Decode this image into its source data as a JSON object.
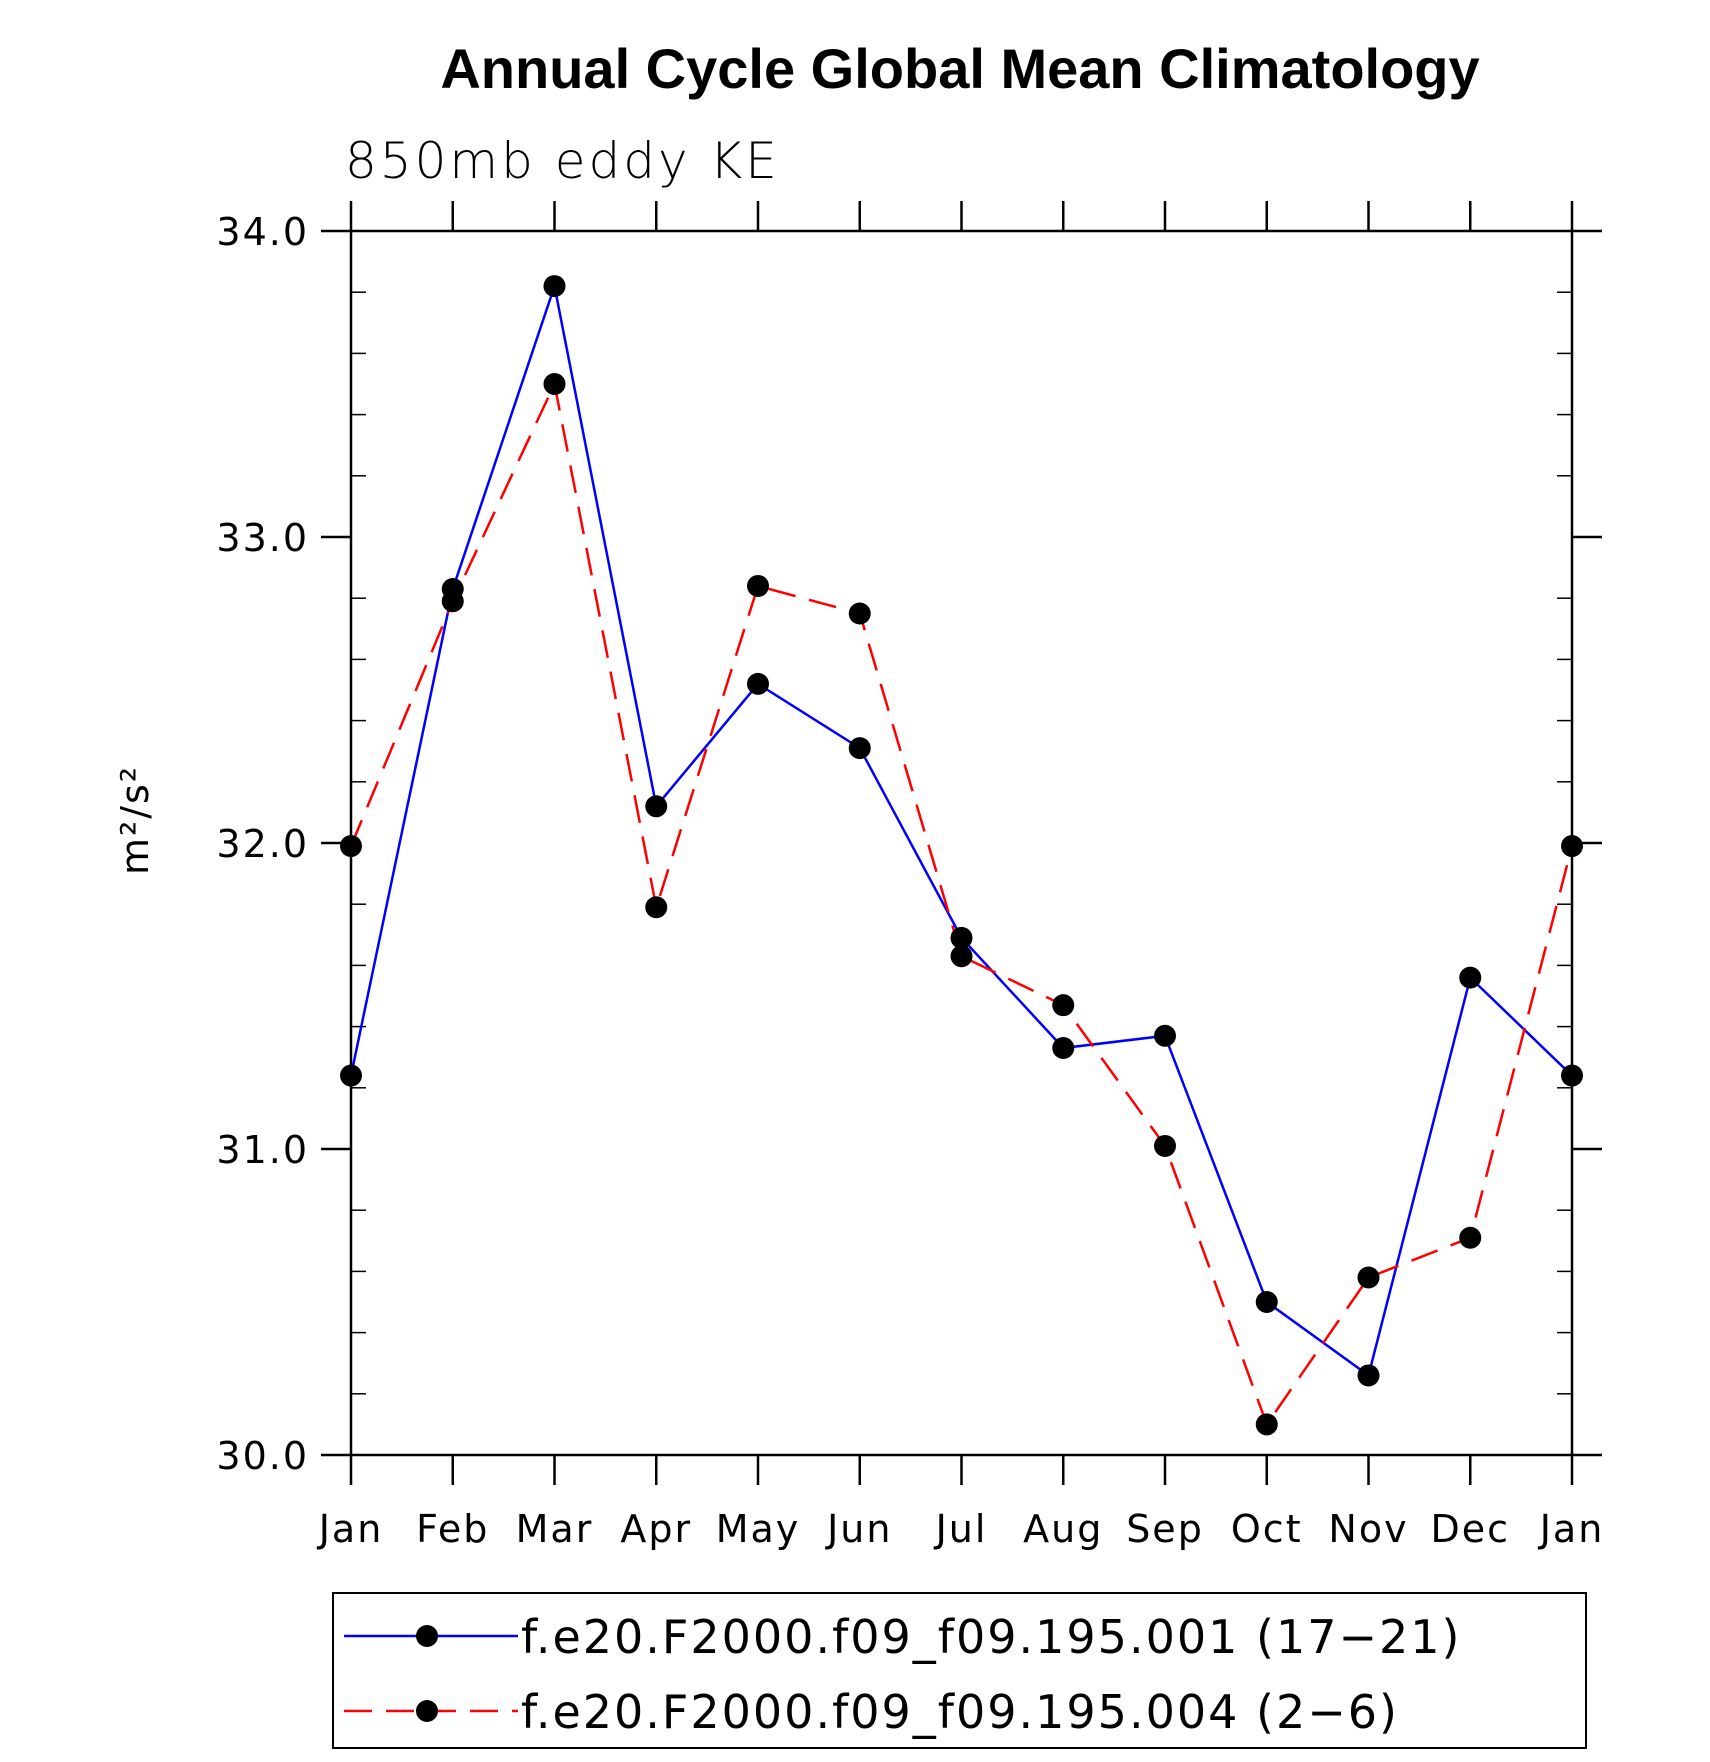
{
  "chart_data": {
    "type": "line",
    "title": "Annual Cycle Global Mean Climatology",
    "subtitle": "850mb eddy KE",
    "ylabel": "m²/s²",
    "xlabel": "",
    "categories": [
      "Jan",
      "Feb",
      "Mar",
      "Apr",
      "May",
      "Jun",
      "Jul",
      "Aug",
      "Sep",
      "Oct",
      "Nov",
      "Dec",
      "Jan"
    ],
    "ylim": [
      30.0,
      34.0
    ],
    "ytick_labels": [
      "30.0",
      "31.0",
      "32.0",
      "33.0",
      "34.0"
    ],
    "grid": false,
    "legend_position": "bottom",
    "series": [
      {
        "name": "f.e20.F2000.f09_f09.195.001 (17−21)",
        "color": "#0000ff",
        "dash": "solid",
        "values": [
          31.24,
          32.83,
          33.82,
          32.12,
          32.52,
          32.31,
          31.69,
          31.33,
          31.37,
          30.5,
          30.26,
          31.56,
          31.24
        ]
      },
      {
        "name": "f.e20.F2000.f09_f09.195.004 (2−6)",
        "color": "#ff0000",
        "dash": "dashed",
        "values": [
          31.99,
          32.79,
          33.5,
          31.79,
          32.84,
          32.75,
          31.63,
          31.47,
          31.01,
          30.1,
          30.58,
          30.71,
          31.99
        ]
      }
    ]
  }
}
